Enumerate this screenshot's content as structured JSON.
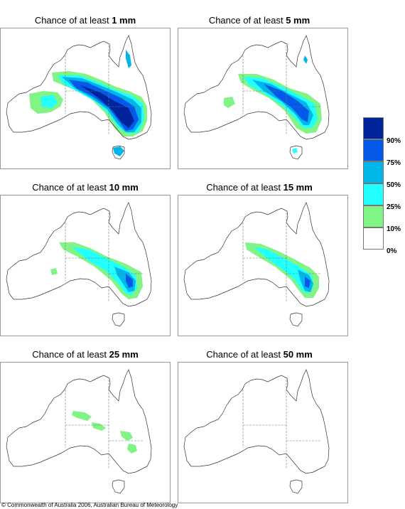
{
  "colors": {
    "c90": "#00249c",
    "c75": "#0459e9",
    "c50": "#00b5e8",
    "c25": "#21ffff",
    "c10": "#80f484",
    "c0": "#ffffff",
    "outline": "#333333"
  },
  "panels": [
    {
      "prefix": "Chance of at least ",
      "amount": "1 mm"
    },
    {
      "prefix": "Chance of at least ",
      "amount": "5 mm"
    },
    {
      "prefix": "Chance of at least ",
      "amount": "10 mm"
    },
    {
      "prefix": "Chance of at least ",
      "amount": "15 mm"
    },
    {
      "prefix": "Chance of at least ",
      "amount": "25 mm"
    },
    {
      "prefix": "Chance of at least ",
      "amount": "50 mm"
    }
  ],
  "legend": {
    "labels": [
      "90%",
      "75%",
      "50%",
      "25%",
      "10%",
      "0%"
    ]
  },
  "copyright": "© Commonwealth of Australia 2006, Australian Bureau of Meteorology"
}
